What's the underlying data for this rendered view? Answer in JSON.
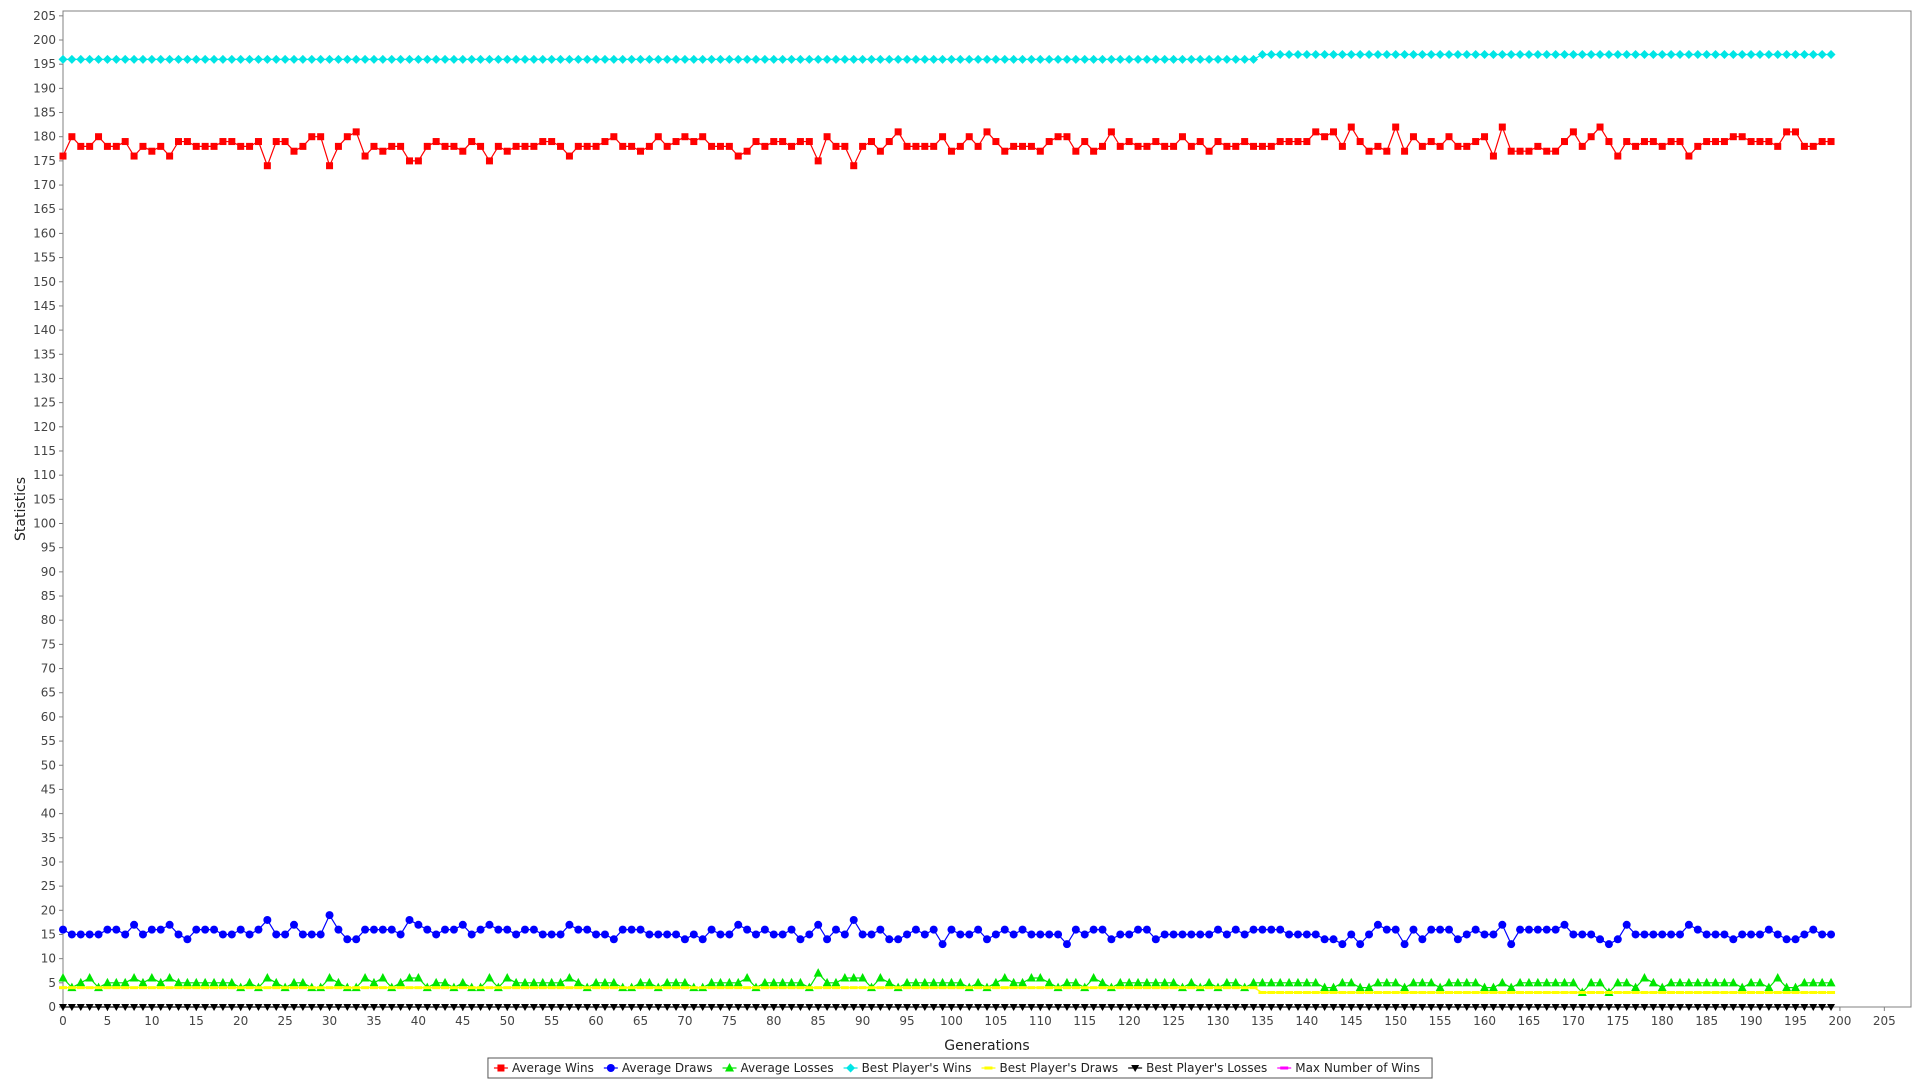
{
  "chart_data": {
    "type": "line",
    "title": "",
    "xlabel": "Generations",
    "ylabel": "Statistics",
    "xlim": [
      0,
      208
    ],
    "ylim": [
      0,
      206
    ],
    "x_ticks": [
      0,
      5,
      10,
      15,
      20,
      25,
      30,
      35,
      40,
      45,
      50,
      55,
      60,
      65,
      70,
      75,
      80,
      85,
      90,
      95,
      100,
      105,
      110,
      115,
      120,
      125,
      130,
      135,
      140,
      145,
      150,
      155,
      160,
      165,
      170,
      175,
      180,
      185,
      190,
      195,
      200,
      205
    ],
    "y_ticks": [
      0,
      5,
      10,
      15,
      20,
      25,
      30,
      35,
      40,
      45,
      50,
      55,
      60,
      65,
      70,
      75,
      80,
      85,
      90,
      95,
      100,
      105,
      110,
      115,
      120,
      125,
      130,
      135,
      140,
      145,
      150,
      155,
      160,
      165,
      170,
      175,
      180,
      185,
      190,
      195,
      200,
      205
    ],
    "x_tick_labels": [
      "0",
      "5",
      "10",
      "15",
      "20",
      "25",
      "30",
      "35",
      "40",
      "45",
      "50",
      "55",
      "60",
      "65",
      "70",
      "75",
      "80",
      "85",
      "90",
      "95",
      "100",
      "105",
      "110",
      "115",
      "120",
      "125",
      "130",
      "135",
      "140",
      "145",
      "150",
      "155",
      "160",
      "165",
      "170",
      "175",
      "180",
      "185",
      "190",
      "195",
      "200",
      "205"
    ],
    "y_tick_labels": [
      "0",
      "5",
      "10",
      "15",
      "20",
      "25",
      "30",
      "35",
      "40",
      "45",
      "50",
      "55",
      "60",
      "65",
      "70",
      "75",
      "80",
      "85",
      "90",
      "95",
      "100",
      "105",
      "110",
      "115",
      "120",
      "125",
      "130",
      "135",
      "140",
      "145",
      "150",
      "155",
      "160",
      "165",
      "170",
      "175",
      "180",
      "185",
      "190",
      "195",
      "200",
      "205"
    ],
    "grid": false,
    "legend_position": "bottom-center",
    "x_start": 0,
    "x_end": 199,
    "series": [
      {
        "name": "Average Wins",
        "color": "#ff0000",
        "marker": "square",
        "values": [
          176,
          180,
          178,
          178,
          180,
          178,
          178,
          179,
          176,
          178,
          177,
          178,
          176,
          179,
          179,
          178,
          178,
          178,
          179,
          179,
          178,
          178,
          179,
          174,
          179,
          179,
          177,
          178,
          180,
          180,
          174,
          178,
          180,
          181,
          176,
          178,
          177,
          178,
          178,
          175,
          175,
          178,
          179,
          178,
          178,
          177,
          179,
          178,
          175,
          178,
          177,
          178,
          178,
          178,
          179,
          179,
          178,
          176,
          178,
          178,
          178,
          179,
          180,
          178,
          178,
          177,
          178,
          180,
          178,
          179,
          180,
          179,
          180,
          178,
          178,
          178,
          176,
          177,
          179,
          178,
          179,
          179,
          178,
          179,
          179,
          175,
          180,
          178,
          178,
          174,
          178,
          179,
          177,
          179,
          181,
          178,
          178,
          178,
          178,
          180,
          177,
          178,
          180,
          178,
          181,
          179,
          177,
          178,
          178,
          178,
          177,
          179,
          180,
          180,
          177,
          179,
          177,
          178,
          181,
          178,
          179,
          178,
          178,
          179,
          178,
          178,
          180,
          178,
          179,
          177,
          179,
          178,
          178,
          179,
          178,
          178,
          178,
          179,
          179,
          179,
          179,
          181,
          180,
          181,
          178,
          182,
          179,
          177,
          178,
          177,
          182,
          177,
          180,
          178,
          179,
          178,
          180,
          178,
          178,
          179,
          180,
          176,
          182,
          177,
          177,
          177,
          178,
          177,
          177,
          179,
          181,
          178,
          180,
          182,
          179,
          176,
          179,
          178,
          179,
          179,
          178,
          179,
          179,
          176,
          178,
          179,
          179,
          179,
          180,
          180,
          179,
          179,
          179,
          178,
          181,
          181,
          178,
          178,
          179,
          179
        ]
      },
      {
        "name": "Average Draws",
        "color": "#0000ff",
        "marker": "circle",
        "values": [
          16,
          15,
          15,
          15,
          15,
          16,
          16,
          15,
          17,
          15,
          16,
          16,
          17,
          15,
          14,
          16,
          16,
          16,
          15,
          15,
          16,
          15,
          16,
          18,
          15,
          15,
          17,
          15,
          15,
          15,
          19,
          16,
          14,
          14,
          16,
          16,
          16,
          16,
          15,
          18,
          17,
          16,
          15,
          16,
          16,
          17,
          15,
          16,
          17,
          16,
          16,
          15,
          16,
          16,
          15,
          15,
          15,
          17,
          16,
          16,
          15,
          15,
          14,
          16,
          16,
          16,
          15,
          15,
          15,
          15,
          14,
          15,
          14,
          16,
          15,
          15,
          17,
          16,
          15,
          16,
          15,
          15,
          16,
          14,
          15,
          17,
          14,
          16,
          15,
          18,
          15,
          15,
          16,
          14,
          14,
          15,
          16,
          15,
          16,
          13,
          16,
          15,
          15,
          16,
          14,
          15,
          16,
          15,
          16,
          15,
          15,
          15,
          15,
          13,
          16,
          15,
          16,
          16,
          14,
          15,
          15,
          16,
          16,
          14,
          15,
          15,
          15,
          15,
          15,
          15,
          16,
          15,
          16,
          15,
          16,
          16,
          16,
          16,
          15,
          15,
          15,
          15,
          14,
          14,
          13,
          15,
          13,
          15,
          17,
          16,
          16,
          13,
          16,
          14,
          16,
          16,
          16,
          14,
          15,
          16,
          15,
          15,
          17,
          13,
          16,
          16,
          16,
          16,
          16,
          17,
          15,
          15,
          15,
          14,
          13,
          14,
          17,
          15,
          15,
          15,
          15,
          15,
          15,
          17,
          16,
          15,
          15,
          15,
          14,
          15,
          15,
          15,
          16,
          15,
          14,
          14,
          15,
          16,
          15,
          15
        ]
      },
      {
        "name": "Average Losses",
        "color": "#00e600",
        "marker": "triangle-up",
        "values": [
          6,
          4,
          5,
          6,
          4,
          5,
          5,
          5,
          6,
          5,
          6,
          5,
          6,
          5,
          5,
          5,
          5,
          5,
          5,
          5,
          4,
          5,
          4,
          6,
          5,
          4,
          5,
          5,
          4,
          4,
          6,
          5,
          4,
          4,
          6,
          5,
          6,
          4,
          5,
          6,
          6,
          4,
          5,
          5,
          4,
          5,
          4,
          4,
          6,
          4,
          6,
          5,
          5,
          5,
          5,
          5,
          5,
          6,
          5,
          4,
          5,
          5,
          5,
          4,
          4,
          5,
          5,
          4,
          5,
          5,
          5,
          4,
          4,
          5,
          5,
          5,
          5,
          6,
          4,
          5,
          5,
          5,
          5,
          5,
          4,
          7,
          5,
          5,
          6,
          6,
          6,
          4,
          6,
          5,
          4,
          5,
          5,
          5,
          5,
          5,
          5,
          5,
          4,
          5,
          4,
          5,
          6,
          5,
          5,
          6,
          6,
          5,
          4,
          5,
          5,
          4,
          6,
          5,
          4,
          5,
          5,
          5,
          5,
          5,
          5,
          5,
          4,
          5,
          4,
          5,
          4,
          5,
          5,
          4,
          5,
          5,
          5,
          5,
          5,
          5,
          5,
          5,
          4,
          4,
          5,
          5,
          4,
          4,
          5,
          5,
          5,
          4,
          5,
          5,
          5,
          4,
          5,
          5,
          5,
          5,
          4,
          4,
          5,
          4,
          5,
          5,
          5,
          5,
          5,
          5,
          5,
          3,
          5,
          5,
          3,
          5,
          5,
          4,
          6,
          5,
          4,
          5,
          5,
          5,
          5,
          5,
          5,
          5,
          5,
          4,
          5,
          5,
          4,
          6,
          4,
          4,
          5,
          5,
          5,
          5
        ]
      },
      {
        "name": "Best Player's Wins",
        "color": "#00e5e5",
        "marker": "diamond",
        "values": [
          196,
          196,
          196,
          196,
          196,
          196,
          196,
          196,
          196,
          196,
          196,
          196,
          196,
          196,
          196,
          196,
          196,
          196,
          196,
          196,
          196,
          196,
          196,
          196,
          196,
          196,
          196,
          196,
          196,
          196,
          196,
          196,
          196,
          196,
          196,
          196,
          196,
          196,
          196,
          196,
          196,
          196,
          196,
          196,
          196,
          196,
          196,
          196,
          196,
          196,
          196,
          196,
          196,
          196,
          196,
          196,
          196,
          196,
          196,
          196,
          196,
          196,
          196,
          196,
          196,
          196,
          196,
          196,
          196,
          196,
          196,
          196,
          196,
          196,
          196,
          196,
          196,
          196,
          196,
          196,
          196,
          196,
          196,
          196,
          196,
          196,
          196,
          196,
          196,
          196,
          196,
          196,
          196,
          196,
          196,
          196,
          196,
          196,
          196,
          196,
          196,
          196,
          196,
          196,
          196,
          196,
          196,
          196,
          196,
          196,
          196,
          196,
          196,
          196,
          196,
          196,
          196,
          196,
          196,
          196,
          196,
          196,
          196,
          196,
          196,
          196,
          196,
          196,
          196,
          196,
          196,
          196,
          196,
          196,
          196,
          197,
          197,
          197,
          197,
          197,
          197,
          197,
          197,
          197,
          197,
          197,
          197,
          197,
          197,
          197,
          197,
          197,
          197,
          197,
          197,
          197,
          197,
          197,
          197,
          197,
          197,
          197,
          197,
          197,
          197,
          197,
          197,
          197,
          197,
          197,
          197,
          197,
          197,
          197,
          197,
          197,
          197,
          197,
          197,
          197,
          197,
          197,
          197,
          197,
          197,
          197,
          197,
          197,
          197,
          197,
          197,
          197,
          197,
          197,
          197,
          197,
          197,
          197,
          197,
          197
        ]
      },
      {
        "name": "Best Player's Draws",
        "color": "#ffff00",
        "marker": "dash",
        "values": [
          4,
          4,
          4,
          4,
          4,
          4,
          4,
          4,
          4,
          4,
          4,
          4,
          4,
          4,
          4,
          4,
          4,
          4,
          4,
          4,
          4,
          4,
          4,
          4,
          4,
          4,
          4,
          4,
          4,
          4,
          4,
          4,
          4,
          4,
          4,
          4,
          4,
          4,
          4,
          4,
          4,
          4,
          4,
          4,
          4,
          4,
          4,
          4,
          4,
          4,
          4,
          4,
          4,
          4,
          4,
          4,
          4,
          4,
          4,
          4,
          4,
          4,
          4,
          4,
          4,
          4,
          4,
          4,
          4,
          4,
          4,
          4,
          4,
          4,
          4,
          4,
          4,
          4,
          4,
          4,
          4,
          4,
          4,
          4,
          4,
          4,
          4,
          4,
          4,
          4,
          4,
          4,
          4,
          4,
          4,
          4,
          4,
          4,
          4,
          4,
          4,
          4,
          4,
          4,
          4,
          4,
          4,
          4,
          4,
          4,
          4,
          4,
          4,
          4,
          4,
          4,
          4,
          4,
          4,
          4,
          4,
          4,
          4,
          4,
          4,
          4,
          4,
          4,
          4,
          4,
          4,
          4,
          4,
          4,
          4,
          3,
          3,
          3,
          3,
          3,
          3,
          3,
          3,
          3,
          3,
          3,
          3,
          3,
          3,
          3,
          3,
          3,
          3,
          3,
          3,
          3,
          3,
          3,
          3,
          3,
          3,
          3,
          3,
          3,
          3,
          3,
          3,
          3,
          3,
          3,
          3,
          3,
          3,
          3,
          3,
          3,
          3,
          3,
          3,
          3,
          3,
          3,
          3,
          3,
          3,
          3,
          3,
          3,
          3,
          3,
          3,
          3,
          3,
          3,
          3,
          3,
          3,
          3,
          3,
          3
        ]
      },
      {
        "name": "Best Player's Losses",
        "color": "#000000",
        "marker": "triangle-down",
        "values": [
          0,
          0,
          0,
          0,
          0,
          0,
          0,
          0,
          0,
          0,
          0,
          0,
          0,
          0,
          0,
          0,
          0,
          0,
          0,
          0,
          0,
          0,
          0,
          0,
          0,
          0,
          0,
          0,
          0,
          0,
          0,
          0,
          0,
          0,
          0,
          0,
          0,
          0,
          0,
          0,
          0,
          0,
          0,
          0,
          0,
          0,
          0,
          0,
          0,
          0,
          0,
          0,
          0,
          0,
          0,
          0,
          0,
          0,
          0,
          0,
          0,
          0,
          0,
          0,
          0,
          0,
          0,
          0,
          0,
          0,
          0,
          0,
          0,
          0,
          0,
          0,
          0,
          0,
          0,
          0,
          0,
          0,
          0,
          0,
          0,
          0,
          0,
          0,
          0,
          0,
          0,
          0,
          0,
          0,
          0,
          0,
          0,
          0,
          0,
          0,
          0,
          0,
          0,
          0,
          0,
          0,
          0,
          0,
          0,
          0,
          0,
          0,
          0,
          0,
          0,
          0,
          0,
          0,
          0,
          0,
          0,
          0,
          0,
          0,
          0,
          0,
          0,
          0,
          0,
          0,
          0,
          0,
          0,
          0,
          0,
          0,
          0,
          0,
          0,
          0,
          0,
          0,
          0,
          0,
          0,
          0,
          0,
          0,
          0,
          0,
          0,
          0,
          0,
          0,
          0,
          0,
          0,
          0,
          0,
          0,
          0,
          0,
          0,
          0,
          0,
          0,
          0,
          0,
          0,
          0,
          0,
          0,
          0,
          0,
          0,
          0,
          0,
          0,
          0,
          0,
          0,
          0,
          0,
          0,
          0,
          0,
          0,
          0,
          0,
          0,
          0,
          0,
          0,
          0,
          0,
          0,
          0,
          0,
          0,
          0
        ]
      },
      {
        "name": "Max Number of Wins",
        "color": "#ff00ff",
        "marker": "dash",
        "values": []
      }
    ]
  }
}
